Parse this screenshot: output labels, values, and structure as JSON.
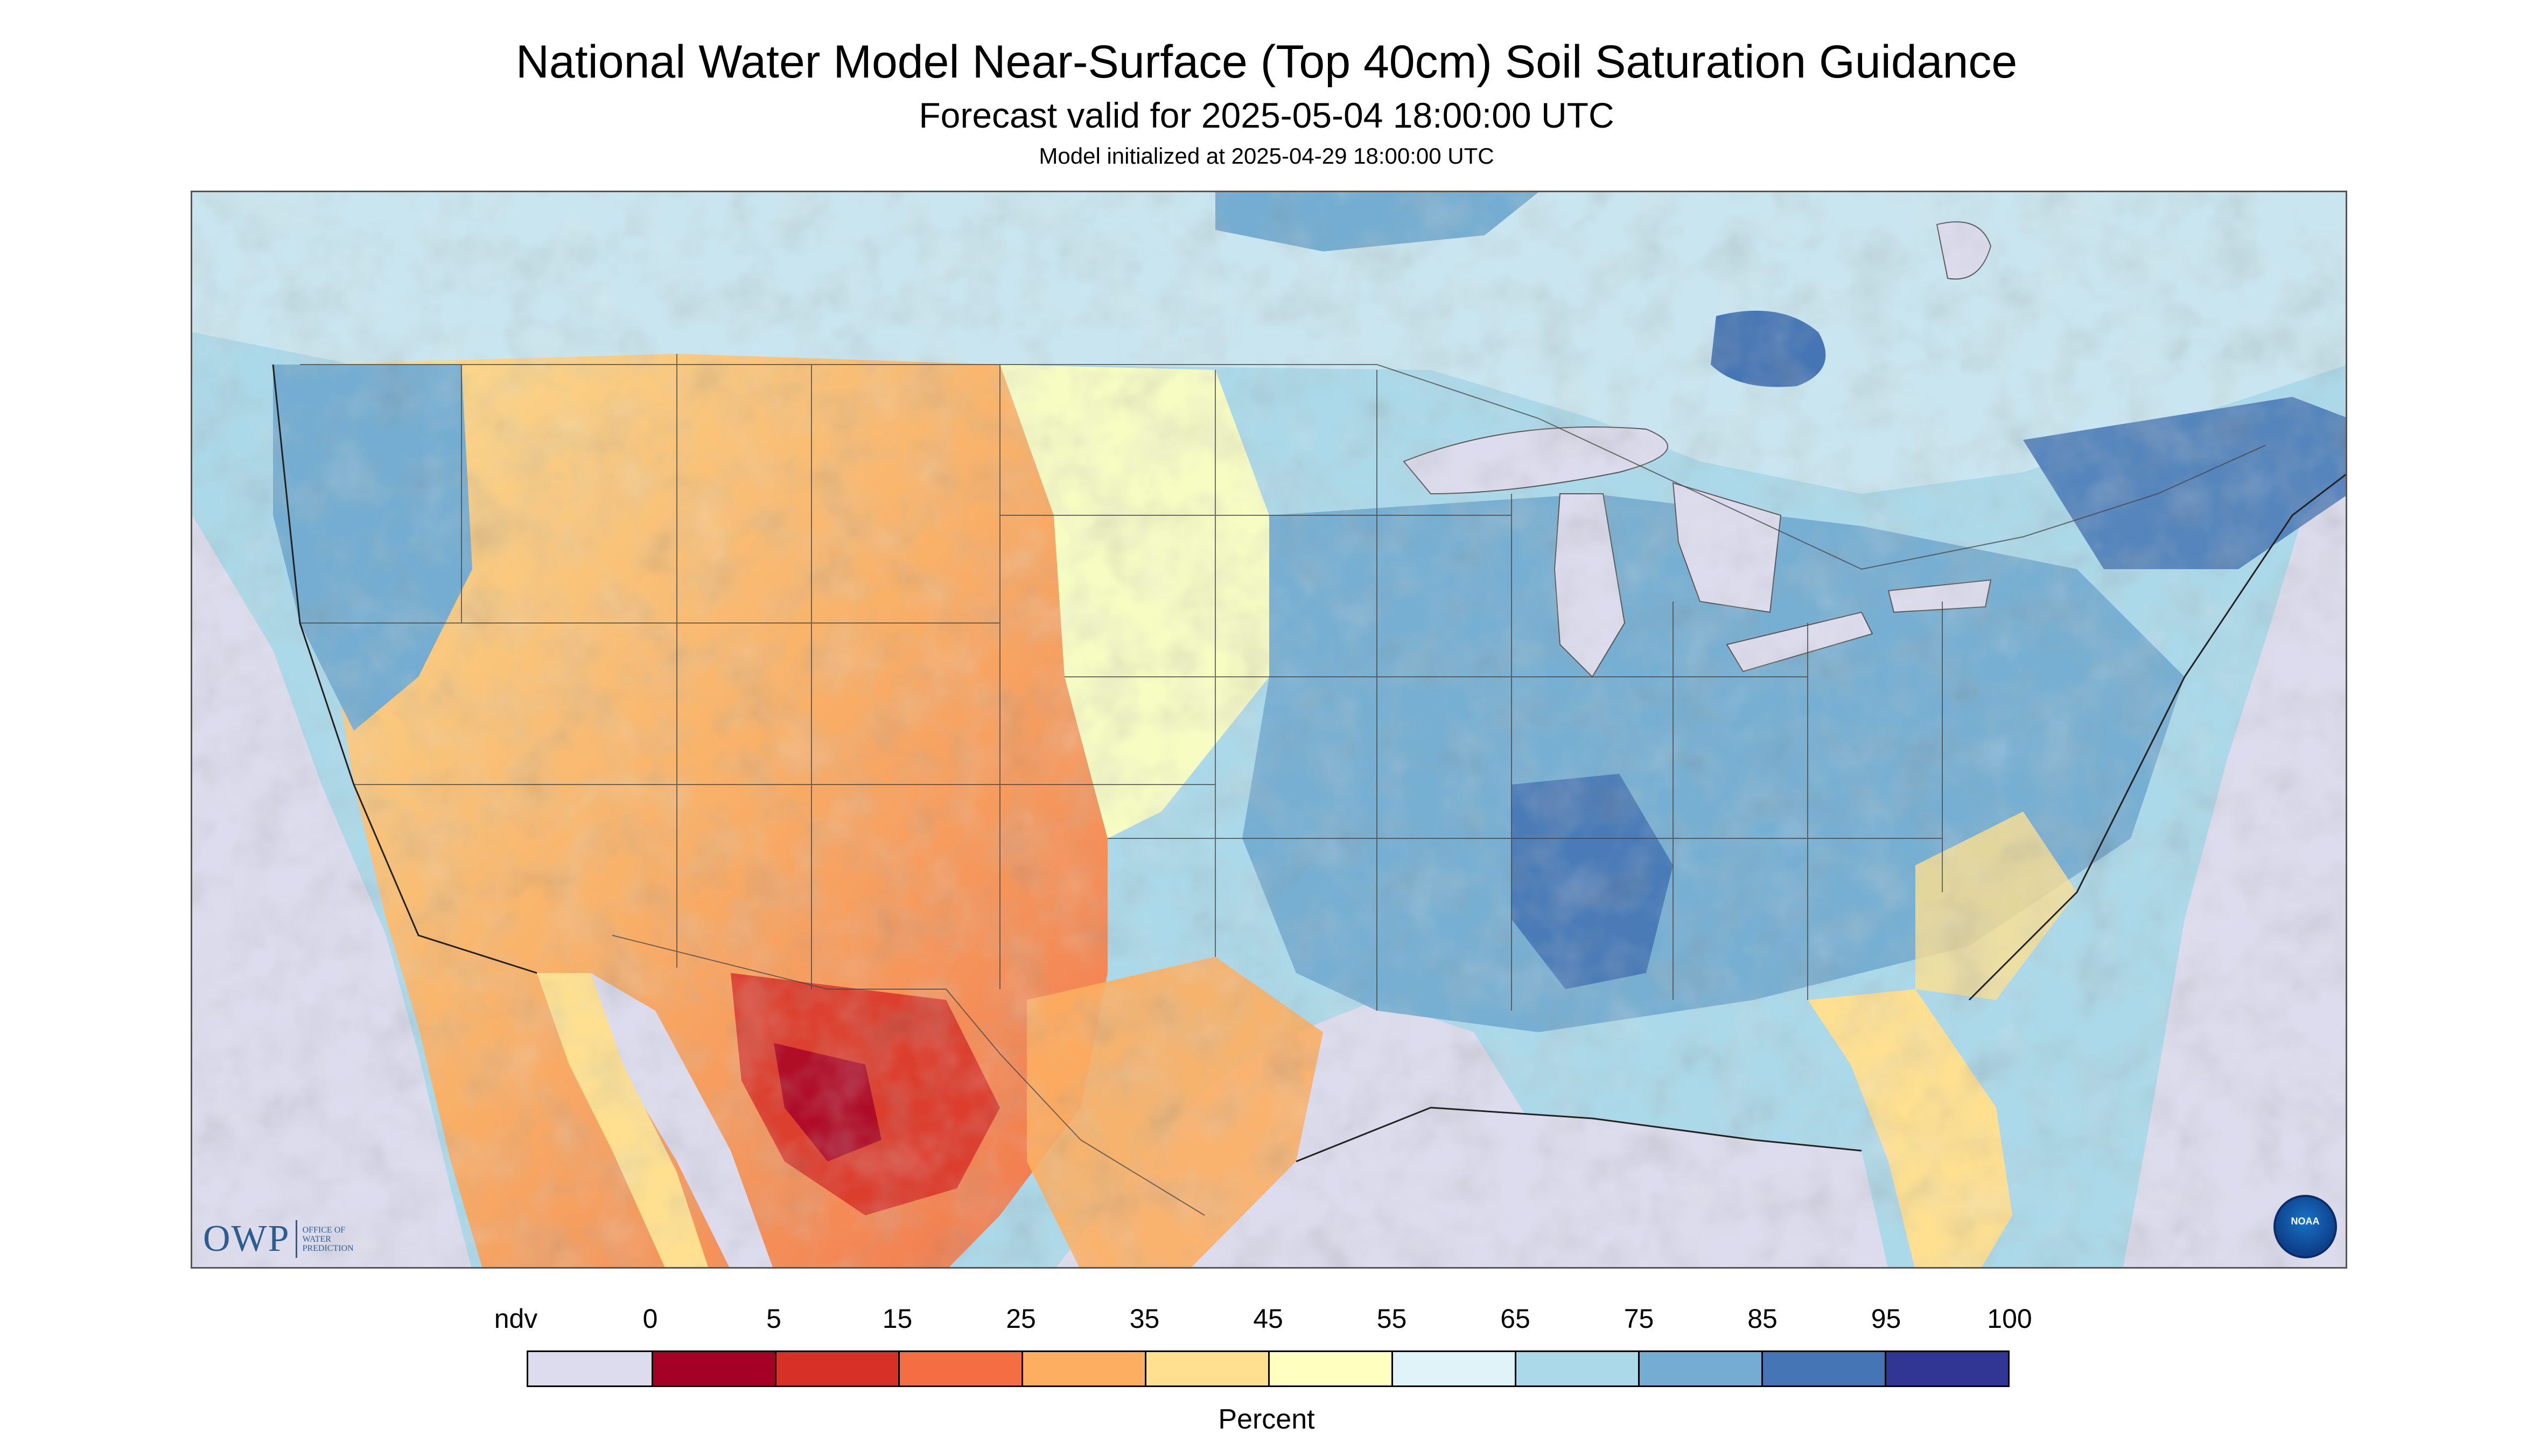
{
  "header": {
    "title": "National Water Model Near-Surface (Top 40cm) Soil Saturation Guidance",
    "subtitle": "Forecast valid for 2025-05-04 18:00:00 UTC",
    "initialized": "Model initialized at 2025-04-29 18:00:00 UTC"
  },
  "logos": {
    "owp_mark": "OWP",
    "owp_text_1": "OFFICE OF",
    "owp_text_2": "WATER",
    "owp_text_3": "PREDICTION",
    "noaa": "NOAA"
  },
  "legend": {
    "labels": [
      "ndv",
      "0",
      "5",
      "15",
      "25",
      "35",
      "45",
      "55",
      "65",
      "75",
      "85",
      "95",
      "100"
    ],
    "colors": [
      "#dcdcee",
      "#a50026",
      "#d73027",
      "#f46d43",
      "#fdae61",
      "#fee090",
      "#ffffbf",
      "#e0f3f8",
      "#abd9e9",
      "#74add1",
      "#4575b4",
      "#313695"
    ],
    "title": "Percent"
  },
  "colors": {
    "no_data": "#dcdcee",
    "water": "#dcdcee",
    "border": "#555555"
  }
}
